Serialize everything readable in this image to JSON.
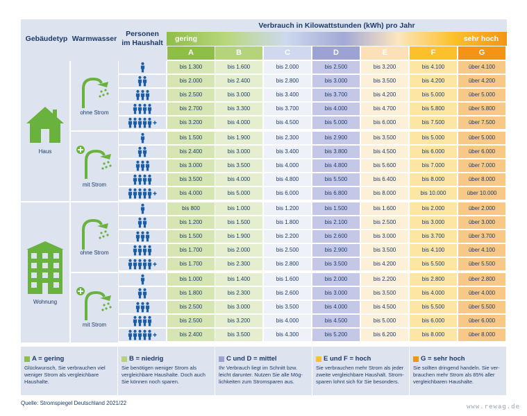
{
  "header": {
    "gebaeudetyp": "Gebäudetyp",
    "warmwasser": "Warmwasser",
    "personen_line1": "Personen",
    "personen_line2": "im Haushalt",
    "title": "Verbrauch in Kilowattstunden (kWh) pro Jahr",
    "low": "gering",
    "high": "sehr hoch"
  },
  "classes": [
    {
      "label": "A",
      "color": "#8fbe47",
      "cell": "#d5e6b3"
    },
    {
      "label": "B",
      "color": "#b4d37c",
      "cell": "#e5efcf"
    },
    {
      "label": "C",
      "color": "#cfd8ee",
      "cell": "#eef1f8"
    },
    {
      "label": "D",
      "color": "#9ca2d3",
      "cell": "#c4c8e6"
    },
    {
      "label": "E",
      "color": "#fbe0b8",
      "cell": "#fdf0d8"
    },
    {
      "label": "F",
      "color": "#fbc02c",
      "cell": "#fde6a4"
    },
    {
      "label": "G",
      "color": "#f39417",
      "cell": "#f8c887"
    }
  ],
  "buildings": {
    "haus": "Haus",
    "wohnung": "Wohnung"
  },
  "water": {
    "ohne": "ohne Strom",
    "mit": "mit Strom"
  },
  "persons": [
    1,
    2,
    3,
    4,
    5
  ],
  "plus": "+",
  "groups": [
    {
      "rows": [
        [
          "bis 1.300",
          "bis 1.600",
          "bis 2.000",
          "bis 2.500",
          "bis 3.200",
          "bis 4.100",
          "über 4.100"
        ],
        [
          "bis 2.000",
          "bis 2.400",
          "bis 2.800",
          "bis 3.000",
          "bis 3.500",
          "bis 4.200",
          "über 4.200"
        ],
        [
          "bis 2.500",
          "bis 3.000",
          "bis 3.400",
          "bis 3.700",
          "bis 4.200",
          "bis 5.000",
          "über 5.000"
        ],
        [
          "bis 2.700",
          "bis 3.300",
          "bis 3.700",
          "bis 4.000",
          "bis 4.700",
          "bis 5.800",
          "über 5.800"
        ],
        [
          "bis 3.200",
          "bis 4.000",
          "bis 4.500",
          "bis 5.000",
          "bis 6.000",
          "bis 7.500",
          "über 7.500"
        ]
      ]
    },
    {
      "rows": [
        [
          "bis 1.500",
          "bis 1.900",
          "bis 2.300",
          "bis 2.900",
          "bis 3.500",
          "bis 5.000",
          "über 5.000"
        ],
        [
          "bis 2.400",
          "bis 3.000",
          "bis 3.400",
          "bis 3.800",
          "bis 4.500",
          "bis 6.000",
          "über 6.000"
        ],
        [
          "bis 3.000",
          "bis 3.500",
          "bis 4.000",
          "bis 4.800",
          "bis 5.600",
          "bis 7.000",
          "über 7.000"
        ],
        [
          "bis 3.500",
          "bis 4.000",
          "bis 4.800",
          "bis 5.500",
          "bis 6.400",
          "bis 8.000",
          "über 8.000"
        ],
        [
          "bis 4.000",
          "bis 5.000",
          "bis 6.000",
          "bis 6.800",
          "bis 8.000",
          "bis 10.000",
          "über 10.000"
        ]
      ]
    },
    {
      "rows": [
        [
          "bis 800",
          "bis 1.000",
          "bis 1.200",
          "bis 1.500",
          "bis 1.600",
          "bis 2.000",
          "über 2.000"
        ],
        [
          "bis 1.200",
          "bis 1.500",
          "bis 1.800",
          "bis 2.100",
          "bis 2.500",
          "bis 3.000",
          "über 3.000"
        ],
        [
          "bis 1.500",
          "bis 1.900",
          "bis 2.200",
          "bis 2.600",
          "bis 3.000",
          "bis 3.700",
          "über 3.700"
        ],
        [
          "bis 1.700",
          "bis 2.000",
          "bis 2.500",
          "bis 2.900",
          "bis 3.500",
          "bis 4.100",
          "über 4.100"
        ],
        [
          "bis 1.700",
          "bis 2.300",
          "bis 2.800",
          "bis 3.500",
          "bis 4.200",
          "bis 5.500",
          "über 5.500"
        ]
      ]
    },
    {
      "rows": [
        [
          "bis 1.000",
          "bis 1.400",
          "bis 1.600",
          "bis 2.000",
          "bis 2.200",
          "bis 2.800",
          "über 2.800"
        ],
        [
          "bis 1.800",
          "bis 2.300",
          "bis 2.600",
          "bis 3.000",
          "bis 3.500",
          "bis 4.000",
          "über 4.000"
        ],
        [
          "bis 2.500",
          "bis 3.000",
          "bis 3.500",
          "bis 4.000",
          "bis 4.500",
          "bis 5.500",
          "über 5.500"
        ],
        [
          "bis 2.500",
          "bis 3.200",
          "bis 4.000",
          "bis 4.500",
          "bis 5.000",
          "bis 6.000",
          "über 6.000"
        ],
        [
          "bis 2.400",
          "bis 3.500",
          "bis 4.300",
          "bis 5.200",
          "bis 6.200",
          "bis 8.000",
          "über 8.000"
        ]
      ]
    }
  ],
  "legend": [
    {
      "title": "A = gering",
      "color": "#8fbe47",
      "text": [
        "Glückwunsch, Sie verbrauchen viel",
        "weniger Strom als vergleichbare",
        "Haushalte."
      ]
    },
    {
      "title": "B = niedrig",
      "color": "#b4d37c",
      "text": [
        "Sie benötigen weniger Strom als",
        "vergleichbare Haushalte. Doch auch",
        "Sie können noch sparen."
      ]
    },
    {
      "title": "C und D = mittel",
      "color": "#9ca2d3",
      "text": [
        "Ihr Verbrauch liegt im Schnitt bzw.",
        "leicht darunter. Nutzen Sie alle Mög-",
        "lichkeiten zum Stromsparen aus."
      ]
    },
    {
      "title": "E und F = hoch",
      "color": "#fbc02c",
      "text": [
        "Sie verbrauchen mehr Strom als jeder",
        "zweite vergleichbare Haushalt. Strom-",
        "sparen lohnt sich für Sie besonders."
      ]
    },
    {
      "title": "G = sehr hoch",
      "color": "#f39417",
      "text": [
        "Sie sollten dringend handeln. Sie ver-",
        "brauchen mehr Strom als 85% aller",
        "vergleichbaren Haushalte."
      ]
    }
  ],
  "source": "Quelle: Stromspiegel Deutschland 2021/22",
  "watermark": "www.rewag.de"
}
